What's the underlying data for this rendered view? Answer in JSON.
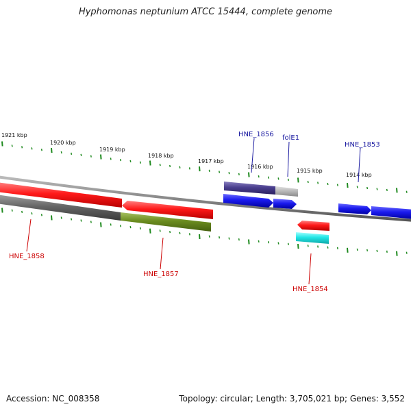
{
  "title": "Hyphomonas neptunium ATCC 15444, complete genome",
  "footer": {
    "accession": "Accession: NC_008358",
    "stats": "Topology: circular; Length: 3,705,021 bp; Genes: 3,552"
  },
  "colors": {
    "tick": "#1f8a1f",
    "backbone": "#888888",
    "label_forward": "#1a1aa0",
    "label_reverse": "#cc0000",
    "red_gene": "#ff1a1a",
    "blue_gene": "#1a1aee",
    "navy_gene": "#4a3f8f",
    "gray_gene": "#666666",
    "olive_gene": "#6b8c1f",
    "cyan_gene": "#22e5e5",
    "light_gray_gene": "#bbbbbb"
  },
  "scale": {
    "unit": "kbp",
    "labels": [
      "1921 kbp",
      "1920 kbp",
      "1919 kbp",
      "1918 kbp",
      "1917 kbp",
      "1916 kbp",
      "1915 kbp",
      "1914 kbp"
    ]
  },
  "gene_labels": [
    {
      "id": "HNE_1856",
      "text": "HNE_1856",
      "strand": "forward"
    },
    {
      "id": "folE1",
      "text": "folE1",
      "strand": "forward"
    },
    {
      "id": "HNE_1853",
      "text": "HNE_1853",
      "strand": "forward"
    },
    {
      "id": "HNE_1858",
      "text": "HNE_1858",
      "strand": "reverse"
    },
    {
      "id": "HNE_1857",
      "text": "HNE_1857",
      "strand": "reverse"
    },
    {
      "id": "HNE_1854",
      "text": "HNE_1854",
      "strand": "reverse"
    }
  ]
}
